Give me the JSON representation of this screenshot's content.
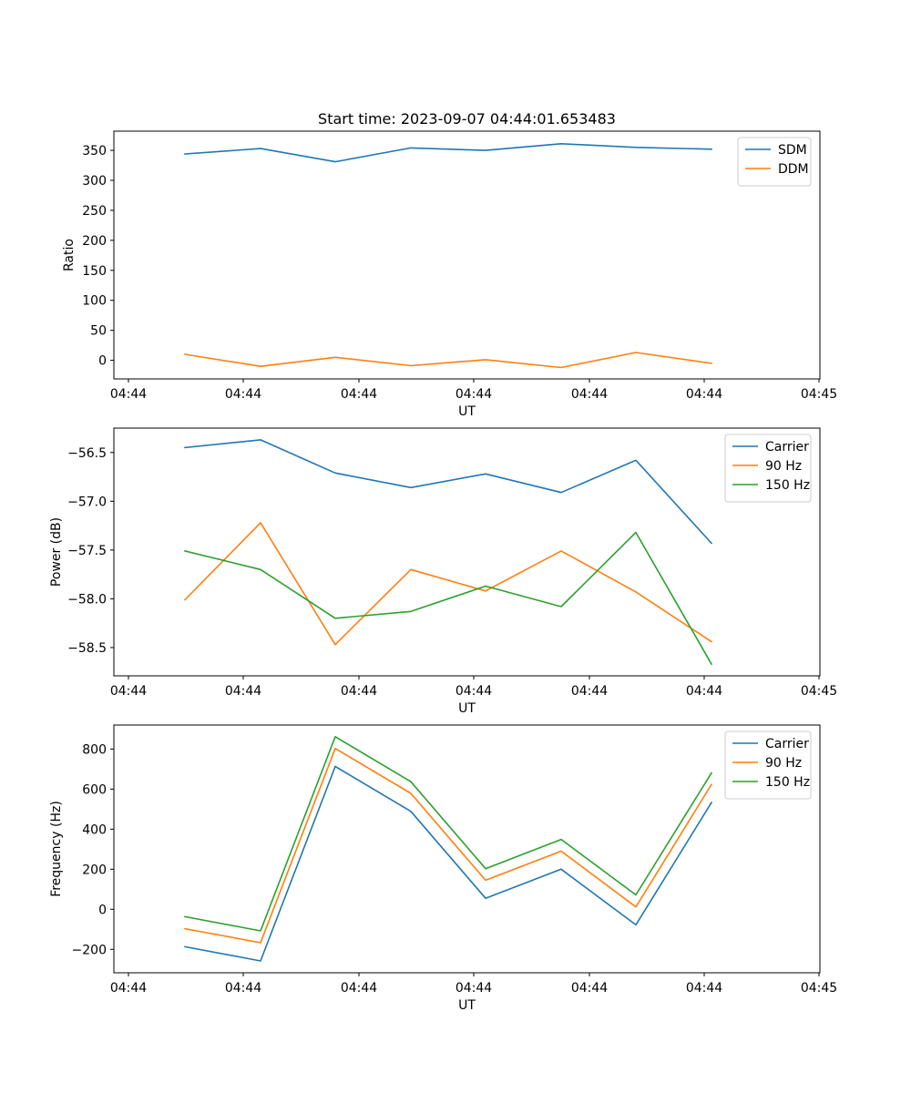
{
  "chart_data": [
    {
      "type": "line",
      "title": "Start time: 2023-09-07 04:44:01.653483",
      "xlabel": "UT",
      "ylabel": "Ratio",
      "x_tick_labels": [
        "04:44",
        "04:44",
        "04:44",
        "04:44",
        "04:44",
        "04:44",
        "04:45"
      ],
      "y_ticks": [
        0,
        50,
        100,
        150,
        200,
        250,
        300,
        350
      ],
      "ylim": [
        -31,
        382
      ],
      "legend_position": "upper-right",
      "series": [
        {
          "name": "SDM",
          "color": "#1f77b4",
          "values": [
            344,
            353,
            331,
            354,
            350,
            361,
            355,
            352
          ]
        },
        {
          "name": "DDM",
          "color": "#ff7f0e",
          "values": [
            10,
            -10,
            5,
            -9,
            1,
            -12,
            13,
            -5
          ]
        }
      ]
    },
    {
      "type": "line",
      "title": "",
      "xlabel": "UT",
      "ylabel": "Power (dB)",
      "x_tick_labels": [
        "04:44",
        "04:44",
        "04:44",
        "04:44",
        "04:44",
        "04:44",
        "04:45"
      ],
      "y_ticks": [
        -58.5,
        -58.0,
        -57.5,
        -57.0,
        -56.5
      ],
      "y_tick_labels": [
        "−58.5",
        "−58.0",
        "−57.5",
        "−57.0",
        "−56.5"
      ],
      "ylim": [
        -58.79,
        -56.25
      ],
      "legend_position": "upper-right",
      "series": [
        {
          "name": "Carrier",
          "color": "#1f77b4",
          "values": [
            -56.45,
            -56.37,
            -56.71,
            -56.86,
            -56.72,
            -56.91,
            -56.58,
            -57.43
          ]
        },
        {
          "name": "90 Hz",
          "color": "#ff7f0e",
          "values": [
            -58.01,
            -57.22,
            -58.47,
            -57.7,
            -57.92,
            -57.51,
            -57.93,
            -58.44
          ]
        },
        {
          "name": "150 Hz",
          "color": "#2ca02c",
          "values": [
            -57.51,
            -57.7,
            -58.2,
            -58.13,
            -57.87,
            -58.08,
            -57.32,
            -58.67
          ]
        }
      ]
    },
    {
      "type": "line",
      "title": "",
      "xlabel": "UT",
      "ylabel": "Frequency (Hz)",
      "x_tick_labels": [
        "04:44",
        "04:44",
        "04:44",
        "04:44",
        "04:44",
        "04:44",
        "04:45"
      ],
      "y_ticks": [
        -200,
        0,
        200,
        400,
        600,
        800
      ],
      "y_tick_labels": [
        "−200",
        "0",
        "200",
        "400",
        "600",
        "800"
      ],
      "ylim": [
        -317,
        920
      ],
      "legend_position": "upper-right",
      "series": [
        {
          "name": "Carrier",
          "color": "#1f77b4",
          "values": [
            -187,
            -258,
            713,
            489,
            55,
            200,
            -78,
            533
          ]
        },
        {
          "name": "90 Hz",
          "color": "#ff7f0e",
          "values": [
            -97,
            -167,
            803,
            579,
            145,
            290,
            12,
            623
          ]
        },
        {
          "name": "150 Hz",
          "color": "#2ca02c",
          "values": [
            -37,
            -108,
            862,
            637,
            203,
            349,
            72,
            681
          ]
        }
      ]
    }
  ]
}
